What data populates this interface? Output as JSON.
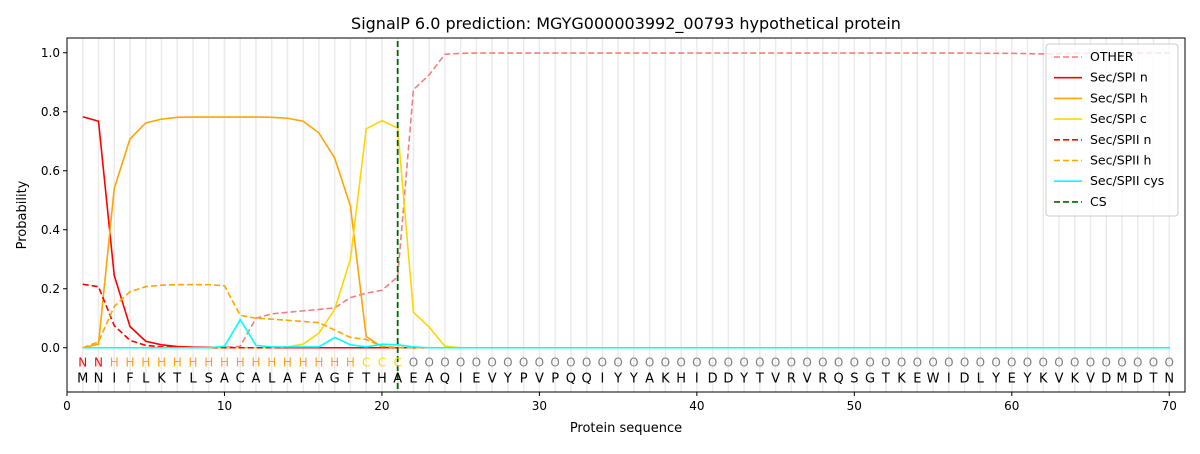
{
  "chart_data": {
    "type": "line",
    "title": "SignalP 6.0 prediction: MGYG000003992_00793 hypothetical protein",
    "xlabel": "Protein sequence",
    "ylabel": "Probability",
    "xlim": [
      0,
      71
    ],
    "ylim": [
      -0.15,
      1.05
    ],
    "xticks": [
      0,
      10,
      20,
      30,
      40,
      50,
      60,
      70
    ],
    "yticks": [
      0.0,
      0.2,
      0.4,
      0.6,
      0.8,
      1.0
    ],
    "ytick_labels": [
      "0.0",
      "0.2",
      "0.4",
      "0.6",
      "0.8",
      "1.0"
    ],
    "grid": "vertical lines at each residue",
    "legend_position": "top-right",
    "sequence": [
      "M",
      "N",
      "I",
      "F",
      "L",
      "K",
      "T",
      "L",
      "S",
      "A",
      "C",
      "A",
      "L",
      "A",
      "F",
      "A",
      "G",
      "F",
      "T",
      "H",
      "A",
      "E",
      "A",
      "Q",
      "I",
      "E",
      "V",
      "Y",
      "P",
      "V",
      "P",
      "Q",
      "Q",
      "I",
      "Y",
      "Y",
      "A",
      "K",
      "H",
      "I",
      "D",
      "D",
      "Y",
      "T",
      "V",
      "R",
      "V",
      "R",
      "Q",
      "S",
      "G",
      "T",
      "K",
      "E",
      "W",
      "I",
      "D",
      "L",
      "Y",
      "E",
      "Y",
      "K",
      "V",
      "K",
      "V",
      "D",
      "M",
      "D",
      "T",
      "N"
    ],
    "labels": [
      "N",
      "N",
      "H",
      "H",
      "H",
      "H",
      "H",
      "H",
      "H",
      "H",
      "H",
      "H",
      "H",
      "H",
      "H",
      "H",
      "H",
      "H",
      "C",
      "C",
      "C",
      "O",
      "O",
      "O",
      "O",
      "O",
      "O",
      "O",
      "O",
      "O",
      "O",
      "O",
      "O",
      "O",
      "O",
      "O",
      "O",
      "O",
      "O",
      "O",
      "O",
      "O",
      "O",
      "O",
      "O",
      "O",
      "O",
      "O",
      "O",
      "O",
      "O",
      "O",
      "O",
      "O",
      "O",
      "O",
      "O",
      "O",
      "O",
      "O",
      "O",
      "O",
      "O",
      "O",
      "O",
      "O",
      "O",
      "O",
      "O",
      "O"
    ],
    "label_colors": {
      "N": "#ff0000",
      "H": "#ffa500",
      "C": "#ffd700",
      "O": "#808080"
    },
    "cleavage_site": 21,
    "series": [
      {
        "name": "OTHER",
        "color": "#f08080",
        "dash": true,
        "values": [
          0,
          0,
          0,
          0,
          0,
          0,
          0,
          0,
          0,
          0,
          0.005,
          0.1,
          0.115,
          0.12,
          0.125,
          0.13,
          0.135,
          0.17,
          0.185,
          0.195,
          0.24,
          0.875,
          0.925,
          0.995,
          0.998,
          0.999,
          0.999,
          0.999,
          0.999,
          0.999,
          0.999,
          0.999,
          0.999,
          0.999,
          0.999,
          0.999,
          0.999,
          0.999,
          0.999,
          0.999,
          0.999,
          0.999,
          0.999,
          0.999,
          0.999,
          0.999,
          0.999,
          0.999,
          0.999,
          0.999,
          0.999,
          0.999,
          0.999,
          0.999,
          0.999,
          0.999,
          0.999,
          0.998,
          0.998,
          0.998,
          0.997,
          0.996,
          0.997,
          0.998,
          0.998,
          0.998,
          0.999,
          0.999,
          0.999,
          0.999
        ]
      },
      {
        "name": "Sec/SPI n",
        "color": "#ff0000",
        "dash": false,
        "values": [
          0.783,
          0.768,
          0.245,
          0.072,
          0.022,
          0.01,
          0.004,
          0.002,
          0.001,
          0.001,
          0,
          0,
          0,
          0,
          0,
          0,
          0,
          0,
          0,
          0,
          0,
          0,
          0,
          0,
          0,
          0,
          0,
          0,
          0,
          0,
          0,
          0,
          0,
          0,
          0,
          0,
          0,
          0,
          0,
          0,
          0,
          0,
          0,
          0,
          0,
          0,
          0,
          0,
          0,
          0,
          0,
          0,
          0,
          0,
          0,
          0,
          0,
          0,
          0,
          0,
          0,
          0,
          0,
          0,
          0,
          0,
          0,
          0,
          0,
          0
        ]
      },
      {
        "name": "Sec/SPI h",
        "color": "#ffa500",
        "dash": false,
        "values": [
          0,
          0.012,
          0.54,
          0.708,
          0.762,
          0.775,
          0.781,
          0.782,
          0.782,
          0.782,
          0.782,
          0.782,
          0.781,
          0.778,
          0.768,
          0.728,
          0.643,
          0.48,
          0.038,
          0.003,
          0,
          0,
          0,
          0,
          0,
          0,
          0,
          0,
          0,
          0,
          0,
          0,
          0,
          0,
          0,
          0,
          0,
          0,
          0,
          0,
          0,
          0,
          0,
          0,
          0,
          0,
          0,
          0,
          0,
          0,
          0,
          0,
          0,
          0,
          0,
          0,
          0,
          0,
          0,
          0,
          0,
          0,
          0,
          0,
          0,
          0,
          0,
          0,
          0,
          0
        ]
      },
      {
        "name": "Sec/SPI c",
        "color": "#ffd700",
        "dash": false,
        "values": [
          0,
          0,
          0,
          0,
          0,
          0,
          0,
          0,
          0,
          0,
          0,
          0,
          0,
          0.003,
          0.012,
          0.05,
          0.13,
          0.3,
          0.742,
          0.77,
          0.745,
          0.12,
          0.07,
          0.005,
          0,
          0,
          0,
          0,
          0,
          0,
          0,
          0,
          0,
          0,
          0,
          0,
          0,
          0,
          0,
          0,
          0,
          0,
          0,
          0,
          0,
          0,
          0,
          0,
          0,
          0,
          0,
          0,
          0,
          0,
          0,
          0,
          0,
          0,
          0,
          0,
          0,
          0,
          0,
          0,
          0,
          0,
          0,
          0,
          0,
          0
        ]
      },
      {
        "name": "Sec/SPII n",
        "color": "#ff0000",
        "dash": true,
        "values": [
          0.215,
          0.207,
          0.075,
          0.025,
          0.008,
          0.003,
          0.001,
          0,
          0,
          0,
          0,
          0,
          0,
          0,
          0,
          0,
          0,
          0,
          0,
          0,
          0,
          0,
          0,
          0,
          0,
          0,
          0,
          0,
          0,
          0,
          0,
          0,
          0,
          0,
          0,
          0,
          0,
          0,
          0,
          0,
          0,
          0,
          0,
          0,
          0,
          0,
          0,
          0,
          0,
          0,
          0,
          0,
          0,
          0,
          0,
          0,
          0,
          0,
          0,
          0,
          0,
          0,
          0,
          0,
          0,
          0,
          0,
          0,
          0,
          0
        ]
      },
      {
        "name": "Sec/SPII h",
        "color": "#ffa500",
        "dash": true,
        "values": [
          0,
          0.02,
          0.14,
          0.19,
          0.207,
          0.212,
          0.214,
          0.214,
          0.214,
          0.21,
          0.11,
          0.1,
          0.097,
          0.093,
          0.089,
          0.085,
          0.06,
          0.035,
          0.028,
          0.005,
          0.001,
          0,
          0,
          0,
          0,
          0,
          0,
          0,
          0,
          0,
          0,
          0,
          0,
          0,
          0,
          0,
          0,
          0,
          0,
          0,
          0,
          0,
          0,
          0,
          0,
          0,
          0,
          0,
          0,
          0,
          0,
          0,
          0,
          0,
          0,
          0,
          0,
          0,
          0,
          0,
          0,
          0,
          0,
          0,
          0,
          0,
          0,
          0,
          0,
          0
        ]
      },
      {
        "name": "Sec/SPII cys",
        "color": "#00ffff",
        "dash": false,
        "values": [
          0,
          0,
          0,
          0,
          0,
          0,
          0,
          0,
          0,
          0.005,
          0.095,
          0.008,
          0.003,
          0.003,
          0.003,
          0.003,
          0.035,
          0.01,
          0.003,
          0.012,
          0.01,
          0.003,
          0,
          0,
          0,
          0,
          0,
          0,
          0,
          0,
          0,
          0,
          0,
          0,
          0,
          0,
          0,
          0,
          0,
          0,
          0,
          0,
          0,
          0,
          0,
          0,
          0,
          0,
          0,
          0,
          0,
          0,
          0,
          0,
          0,
          0,
          0,
          0,
          0,
          0,
          0,
          0,
          0,
          0,
          0,
          0,
          0,
          0,
          0,
          0
        ]
      }
    ],
    "cs_legend": {
      "name": "CS",
      "color": "#006400"
    }
  }
}
